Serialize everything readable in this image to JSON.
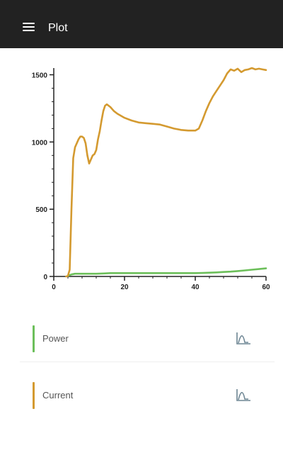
{
  "app_bar": {
    "title": "Plot",
    "menu_icon": "hamburger-menu-icon"
  },
  "colors": {
    "app_bar": "#222222",
    "power": "#6cbf5a",
    "current": "#d49a30",
    "toggle_icon": "#6d8593"
  },
  "legend": [
    {
      "name": "Power",
      "color": "#6cbf5a",
      "icon": "line-chart-icon"
    },
    {
      "name": "Current",
      "color": "#d49a30",
      "icon": "line-chart-icon"
    }
  ],
  "chart_data": {
    "type": "line",
    "xlim": [
      0,
      60
    ],
    "ylim": [
      0,
      1550
    ],
    "x_ticks": [
      0,
      20,
      40,
      60
    ],
    "y_ticks": [
      0,
      500,
      1000,
      1500
    ],
    "grid": false,
    "series": [
      {
        "name": "Current",
        "color": "#d49a30",
        "x": [
          3.5,
          4,
          4.5,
          5,
          5.5,
          6,
          6.5,
          7,
          7.5,
          8,
          8.5,
          9,
          9.5,
          10,
          10.5,
          11,
          11.5,
          12,
          12.5,
          13,
          13.5,
          14,
          14.5,
          15,
          16,
          17,
          18,
          20,
          22,
          24,
          26,
          28,
          30,
          32,
          34,
          36,
          38,
          40,
          41,
          42,
          43,
          44,
          45,
          46,
          47,
          48,
          49,
          50,
          51,
          52,
          53,
          54,
          55,
          56,
          57,
          58,
          59,
          60
        ],
        "y": [
          0,
          5,
          50,
          500,
          880,
          960,
          990,
          1020,
          1040,
          1040,
          1030,
          990,
          900,
          840,
          870,
          900,
          910,
          940,
          1020,
          1080,
          1160,
          1230,
          1270,
          1280,
          1260,
          1230,
          1210,
          1180,
          1160,
          1145,
          1140,
          1135,
          1130,
          1115,
          1100,
          1090,
          1085,
          1085,
          1100,
          1160,
          1230,
          1290,
          1340,
          1380,
          1420,
          1460,
          1510,
          1540,
          1530,
          1545,
          1520,
          1535,
          1540,
          1550,
          1540,
          1545,
          1540,
          1535
        ]
      },
      {
        "name": "Power",
        "color": "#6cbf5a",
        "x": [
          4,
          5,
          6,
          8,
          10,
          12,
          14,
          16,
          20,
          24,
          28,
          32,
          36,
          40,
          42,
          44,
          46,
          48,
          50,
          52,
          54,
          56,
          58,
          60
        ],
        "y": [
          5,
          15,
          20,
          20,
          20,
          20,
          22,
          25,
          25,
          25,
          25,
          25,
          25,
          25,
          26,
          28,
          30,
          33,
          36,
          40,
          45,
          50,
          55,
          60
        ]
      }
    ]
  }
}
